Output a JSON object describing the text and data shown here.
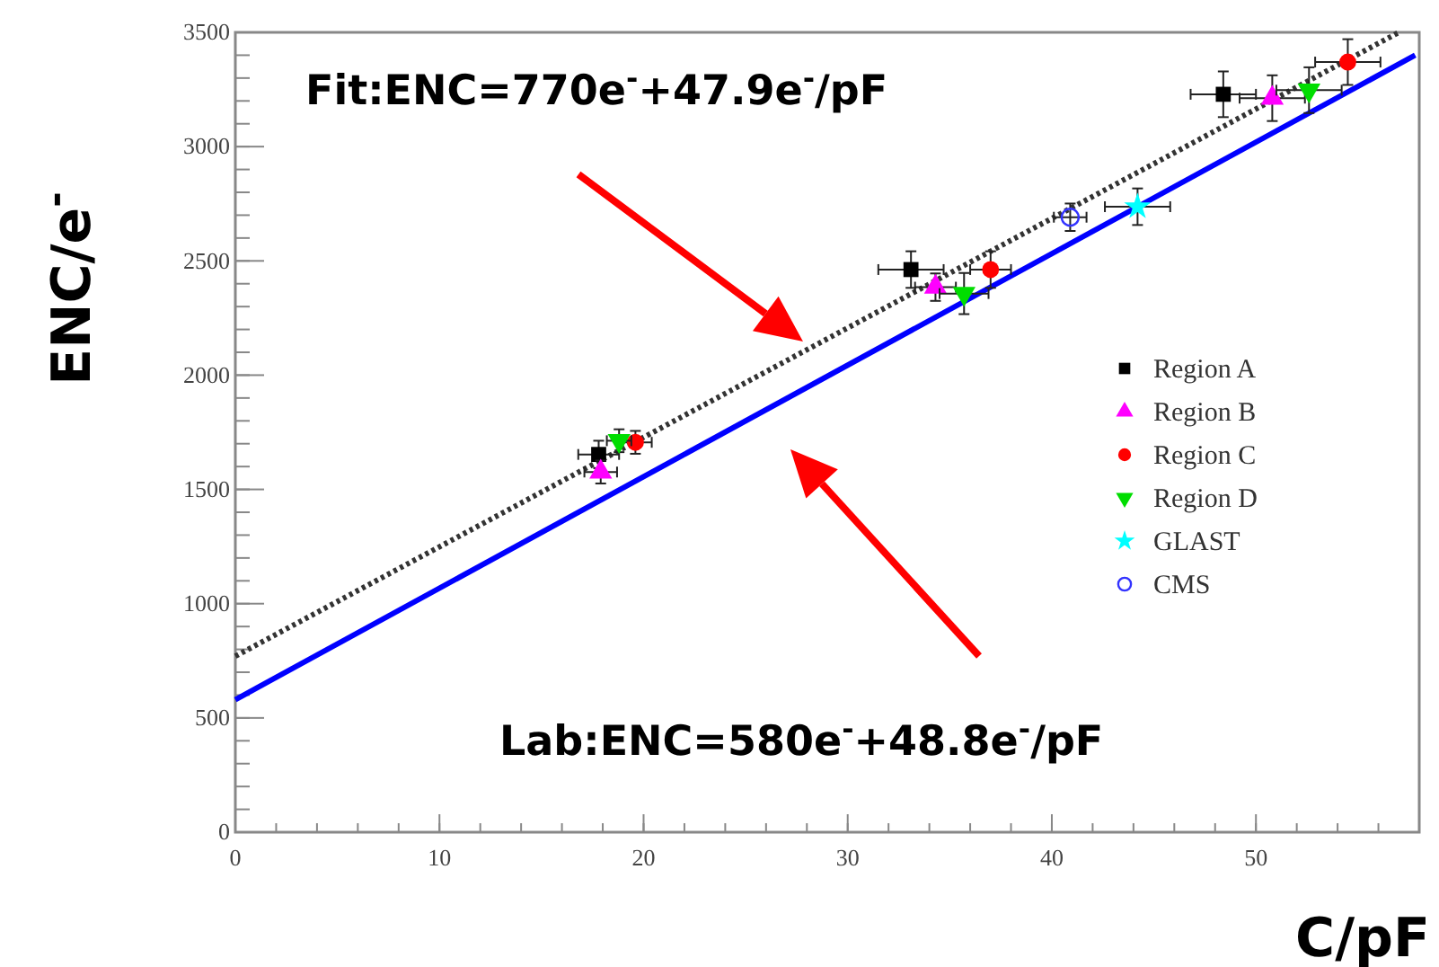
{
  "chart_data": {
    "type": "scatter",
    "xlabel": "C/pF",
    "ylabel": "ENC/e$^{-}$",
    "xlim": [
      0,
      58
    ],
    "xticks": [
      0,
      10,
      20,
      30,
      40,
      50
    ],
    "ylim": [
      0,
      3500
    ],
    "yticks": [
      0,
      500,
      1000,
      1500,
      2000,
      2500,
      3000,
      3500
    ],
    "grid": false,
    "legend": "right",
    "series": [
      {
        "name": "Region A",
        "color": "#000000",
        "marker": "square",
        "x": [
          17.8,
          33.1,
          48.4
        ],
        "values": [
          1653,
          2462,
          3229
        ],
        "errors": [
          60,
          80,
          100
        ],
        "xerrors": [
          1,
          1.6,
          1.6
        ]
      },
      {
        "name": "Region B",
        "color": "#ff00ff",
        "marker": "triangle",
        "x": [
          17.9,
          34.3,
          50.8
        ],
        "values": [
          1576,
          2385,
          3212
        ],
        "errors": [
          50,
          60,
          100
        ],
        "xerrors": [
          0.8,
          1,
          1.6
        ]
      },
      {
        "name": "Region C",
        "color": "#ff0000",
        "marker": "circle",
        "x": [
          19.6,
          37.0,
          54.5
        ],
        "values": [
          1706,
          2462,
          3370
        ],
        "errors": [
          50,
          80,
          100
        ],
        "xerrors": [
          0.8,
          1,
          1.6
        ]
      },
      {
        "name": "Region D",
        "color": "#00dd00",
        "marker": "triangle-down",
        "x": [
          18.8,
          35.7,
          52.6
        ],
        "values": [
          1713,
          2357,
          3247
        ],
        "errors": [
          50,
          90,
          100
        ],
        "xerrors": [
          0.6,
          1.2,
          1.6
        ]
      },
      {
        "name": "GLAST",
        "color": "#00ffff",
        "marker": "star",
        "x": [
          44.2
        ],
        "values": [
          2737
        ],
        "errors": [
          80
        ],
        "xerrors": [
          1.6
        ]
      },
      {
        "name": "CMS",
        "color": "#3333ff",
        "marker": "circle-open",
        "x": [
          40.9
        ],
        "values": [
          2691
        ],
        "errors": [
          60
        ],
        "xerrors": [
          0.8
        ]
      },
      {
        "type": "line",
        "color": "#333333",
        "line_style": "dotted",
        "x": [
          0,
          57
        ],
        "values": [
          770,
          3500
        ]
      },
      {
        "type": "line",
        "color": "#0000ff",
        "line_style": "solid",
        "x": [
          0,
          57.8
        ],
        "values": [
          580,
          3400
        ]
      }
    ],
    "annotations": [
      "Fit:ENC=770e$^{-}$+47.9e$^{-}$/pF",
      "Lab:ENC=580e$^{-}$+48.8e$^{-}$/pF"
    ]
  }
}
